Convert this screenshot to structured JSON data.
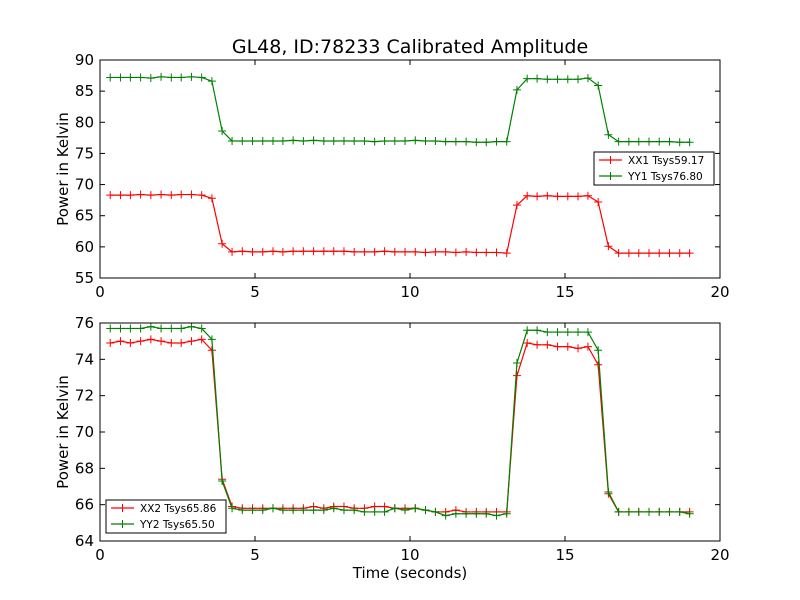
{
  "chart_data": [
    {
      "type": "line",
      "title": "GL48, ID:78233 Calibrated Amplitude",
      "xlabel": "",
      "ylabel": "Power in Kelvin",
      "xlim": [
        0,
        20
      ],
      "ylim": [
        55,
        90
      ],
      "xticks": [
        "0",
        "5",
        "10",
        "15",
        "20"
      ],
      "yticks": [
        "55",
        "60",
        "65",
        "70",
        "75",
        "80",
        "85",
        "90"
      ],
      "grid": false,
      "legend_position": "center-right",
      "series": [
        {
          "name": "XX1 Tsys59.17",
          "color": "#ff0000",
          "marker": "plus",
          "x": [
            0.33,
            0.66,
            0.98,
            1.31,
            1.64,
            1.97,
            2.3,
            2.62,
            2.95,
            3.28,
            3.61,
            3.94,
            4.26,
            4.59,
            4.92,
            5.25,
            5.58,
            5.9,
            6.23,
            6.56,
            6.89,
            7.22,
            7.54,
            7.87,
            8.2,
            8.53,
            8.86,
            9.18,
            9.51,
            9.84,
            10.17,
            10.5,
            10.82,
            11.15,
            11.48,
            11.81,
            12.14,
            12.46,
            12.79,
            13.12,
            13.45,
            13.78,
            14.1,
            14.43,
            14.76,
            15.09,
            15.42,
            15.74,
            16.07,
            16.4,
            16.73,
            17.06,
            17.38,
            17.71,
            18.04,
            18.37,
            18.7,
            19.02
          ],
          "y": [
            68.3,
            68.3,
            68.3,
            68.4,
            68.3,
            68.4,
            68.3,
            68.4,
            68.4,
            68.3,
            67.8,
            60.5,
            59.2,
            59.3,
            59.2,
            59.2,
            59.3,
            59.2,
            59.3,
            59.3,
            59.3,
            59.3,
            59.3,
            59.3,
            59.2,
            59.2,
            59.2,
            59.3,
            59.2,
            59.2,
            59.2,
            59.1,
            59.2,
            59.2,
            59.1,
            59.2,
            59.1,
            59.1,
            59.1,
            59.0,
            66.7,
            68.2,
            68.1,
            68.2,
            68.1,
            68.1,
            68.1,
            68.2,
            67.2,
            60.1,
            59.0,
            59.0,
            59.0,
            59.0,
            59.0,
            59.0,
            59.0,
            59.0
          ]
        },
        {
          "name": "YY1 Tsys76.80",
          "color": "#008000",
          "marker": "plus",
          "x": [
            0.33,
            0.66,
            0.98,
            1.31,
            1.64,
            1.97,
            2.3,
            2.62,
            2.95,
            3.28,
            3.61,
            3.94,
            4.26,
            4.59,
            4.92,
            5.25,
            5.58,
            5.9,
            6.23,
            6.56,
            6.89,
            7.22,
            7.54,
            7.87,
            8.2,
            8.53,
            8.86,
            9.18,
            9.51,
            9.84,
            10.17,
            10.5,
            10.82,
            11.15,
            11.48,
            11.81,
            12.14,
            12.46,
            12.79,
            13.12,
            13.45,
            13.78,
            14.1,
            14.43,
            14.76,
            15.09,
            15.42,
            15.74,
            16.07,
            16.4,
            16.73,
            17.06,
            17.38,
            17.71,
            18.04,
            18.37,
            18.7,
            19.02
          ],
          "y": [
            87.2,
            87.2,
            87.2,
            87.2,
            87.1,
            87.3,
            87.2,
            87.2,
            87.3,
            87.2,
            86.6,
            78.6,
            77.0,
            77.0,
            77.0,
            77.0,
            77.0,
            77.0,
            77.1,
            77.0,
            77.1,
            77.0,
            77.0,
            77.0,
            77.0,
            77.0,
            76.9,
            77.0,
            77.0,
            77.0,
            77.1,
            77.0,
            77.0,
            76.9,
            76.9,
            76.9,
            76.8,
            76.8,
            76.9,
            76.9,
            85.2,
            87.0,
            87.0,
            86.9,
            86.9,
            86.9,
            86.9,
            87.1,
            85.9,
            78.0,
            76.9,
            76.9,
            76.9,
            76.9,
            76.9,
            76.9,
            76.8,
            76.8
          ]
        }
      ]
    },
    {
      "type": "line",
      "title": "",
      "xlabel": "Time (seconds)",
      "ylabel": "Power in Kelvin",
      "xlim": [
        0,
        20
      ],
      "ylim": [
        64,
        76
      ],
      "xticks": [
        "0",
        "5",
        "10",
        "15",
        "20"
      ],
      "yticks": [
        "64",
        "66",
        "68",
        "70",
        "72",
        "74",
        "76"
      ],
      "grid": false,
      "legend_position": "bottom-left",
      "series": [
        {
          "name": "XX2 Tsys65.86",
          "color": "#ff0000",
          "marker": "plus",
          "x": [
            0.33,
            0.66,
            0.98,
            1.31,
            1.64,
            1.97,
            2.3,
            2.62,
            2.95,
            3.28,
            3.61,
            3.94,
            4.26,
            4.59,
            4.92,
            5.25,
            5.58,
            5.9,
            6.23,
            6.56,
            6.89,
            7.22,
            7.54,
            7.87,
            8.2,
            8.53,
            8.86,
            9.18,
            9.51,
            9.84,
            10.17,
            10.5,
            10.82,
            11.15,
            11.48,
            11.81,
            12.14,
            12.46,
            12.79,
            13.12,
            13.45,
            13.78,
            14.1,
            14.43,
            14.76,
            15.09,
            15.42,
            15.74,
            16.07,
            16.4,
            16.73,
            17.06,
            17.38,
            17.71,
            18.04,
            18.37,
            18.7,
            19.02
          ],
          "y": [
            74.9,
            75.0,
            74.9,
            75.0,
            75.1,
            75.0,
            74.9,
            74.9,
            75.0,
            75.1,
            74.5,
            67.4,
            65.9,
            65.8,
            65.8,
            65.8,
            65.8,
            65.8,
            65.8,
            65.8,
            65.9,
            65.8,
            65.9,
            65.9,
            65.8,
            65.8,
            65.9,
            65.9,
            65.8,
            65.8,
            65.8,
            65.7,
            65.6,
            65.6,
            65.7,
            65.6,
            65.6,
            65.6,
            65.6,
            65.6,
            73.1,
            74.9,
            74.8,
            74.8,
            74.7,
            74.7,
            74.6,
            74.7,
            73.7,
            66.6,
            65.6,
            65.6,
            65.6,
            65.6,
            65.6,
            65.6,
            65.6,
            65.6
          ]
        },
        {
          "name": "YY2 Tsys65.50",
          "color": "#008000",
          "marker": "plus",
          "x": [
            0.33,
            0.66,
            0.98,
            1.31,
            1.64,
            1.97,
            2.3,
            2.62,
            2.95,
            3.28,
            3.61,
            3.94,
            4.26,
            4.59,
            4.92,
            5.25,
            5.58,
            5.9,
            6.23,
            6.56,
            6.89,
            7.22,
            7.54,
            7.87,
            8.2,
            8.53,
            8.86,
            9.18,
            9.51,
            9.84,
            10.17,
            10.5,
            10.82,
            11.15,
            11.48,
            11.81,
            12.14,
            12.46,
            12.79,
            13.12,
            13.45,
            13.78,
            14.1,
            14.43,
            14.76,
            15.09,
            15.42,
            15.74,
            16.07,
            16.4,
            16.73,
            17.06,
            17.38,
            17.71,
            18.04,
            18.37,
            18.7,
            19.02
          ],
          "y": [
            75.7,
            75.7,
            75.7,
            75.7,
            75.8,
            75.7,
            75.7,
            75.7,
            75.8,
            75.7,
            75.1,
            67.3,
            65.8,
            65.7,
            65.7,
            65.7,
            65.8,
            65.7,
            65.7,
            65.7,
            65.7,
            65.7,
            65.8,
            65.7,
            65.7,
            65.6,
            65.6,
            65.6,
            65.8,
            65.7,
            65.8,
            65.7,
            65.6,
            65.4,
            65.5,
            65.5,
            65.5,
            65.5,
            65.4,
            65.5,
            73.8,
            75.6,
            75.6,
            75.5,
            75.5,
            75.5,
            75.5,
            75.5,
            74.5,
            66.7,
            65.6,
            65.6,
            65.6,
            65.6,
            65.6,
            65.6,
            65.6,
            65.5
          ]
        }
      ]
    }
  ]
}
